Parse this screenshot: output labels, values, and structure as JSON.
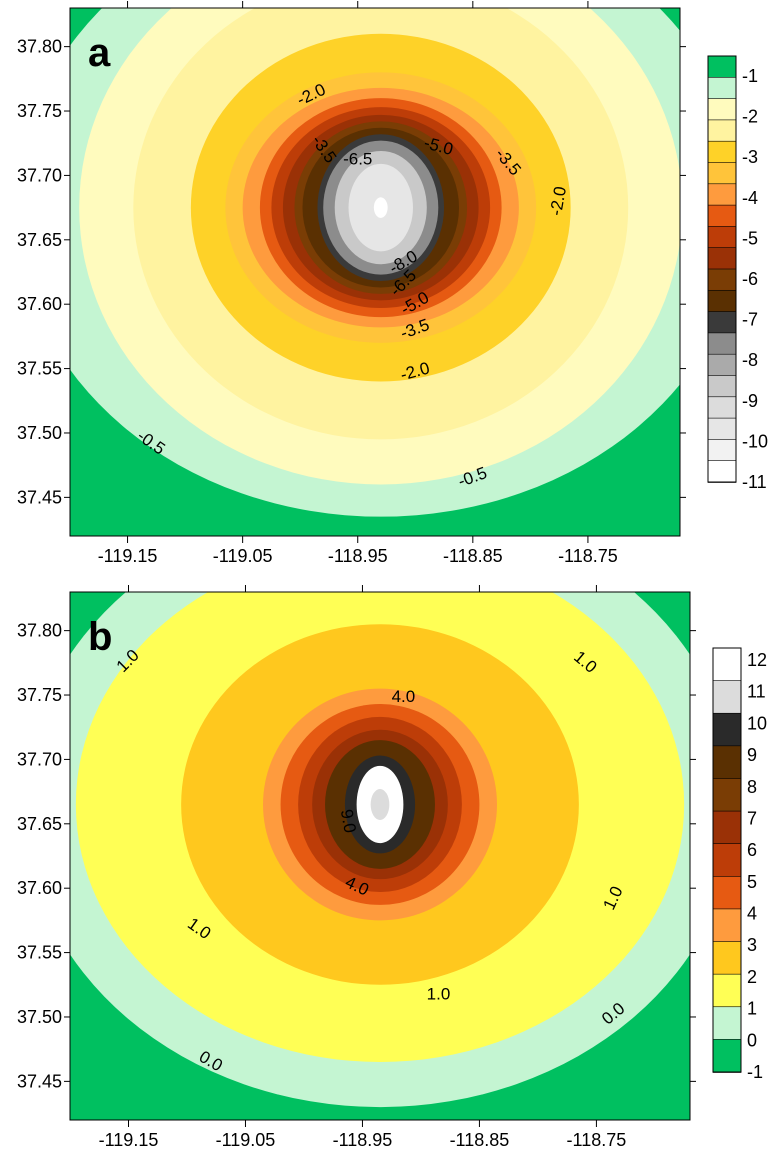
{
  "chart_data": [
    {
      "type": "contour",
      "panel_label": "a",
      "xlabel": "",
      "ylabel": "",
      "xlim": [
        -119.2,
        -118.67
      ],
      "ylim": [
        37.42,
        37.83
      ],
      "x_ticks": [
        -119.15,
        -119.05,
        -118.95,
        -118.85,
        -118.75
      ],
      "x_tick_labels": [
        "-119.15",
        "-119.05",
        "-118.95",
        "-118.85",
        "-118.75"
      ],
      "y_ticks": [
        37.45,
        37.5,
        37.55,
        37.6,
        37.65,
        37.7,
        37.75,
        37.8
      ],
      "y_tick_labels": [
        "37.45",
        "37.50",
        "37.55",
        "37.60",
        "37.65",
        "37.70",
        "37.75",
        "37.80"
      ],
      "center": {
        "x": -118.93,
        "y": 37.675
      },
      "outer_level": -0.5,
      "levels": [
        {
          "value": -0.5,
          "rx": 0.317,
          "ry": 0.24,
          "color": "#c4f5d2"
        },
        {
          "value": -1.0,
          "rx": 0.262,
          "ry": 0.215,
          "color": "#fffbbe"
        },
        {
          "value": -1.5,
          "rx": 0.215,
          "ry": 0.18,
          "color": "#fff3a0"
        },
        {
          "value": -2.0,
          "rx": 0.165,
          "ry": 0.135,
          "color": "#fed228"
        },
        {
          "value": -3.0,
          "rx": 0.135,
          "ry": 0.105,
          "color": "#ffc43a"
        },
        {
          "value": -3.5,
          "rx": 0.12,
          "ry": 0.093,
          "color": "#fe9b3e"
        },
        {
          "value": -4.0,
          "rx": 0.105,
          "ry": 0.085,
          "color": "#e65a12"
        },
        {
          "value": -5.0,
          "rx": 0.095,
          "ry": 0.078,
          "color": "#bd3d08"
        },
        {
          "value": -5.5,
          "rx": 0.085,
          "ry": 0.072,
          "color": "#9a3106"
        },
        {
          "value": -6.0,
          "rx": 0.075,
          "ry": 0.067,
          "color": "#7a3d05"
        },
        {
          "value": -6.5,
          "rx": 0.068,
          "ry": 0.062,
          "color": "#5a3002"
        },
        {
          "value": -7.0,
          "rx": 0.055,
          "ry": 0.057,
          "color": "#3a3a3a"
        },
        {
          "value": -8.0,
          "rx": 0.05,
          "ry": 0.052,
          "color": "#8c8c8c"
        },
        {
          "value": -9.0,
          "rx": 0.04,
          "ry": 0.044,
          "color": "#c9c9c9"
        },
        {
          "value": -10.0,
          "rx": 0.028,
          "ry": 0.034,
          "color": "#e6e6e6"
        },
        {
          "value": -11.0,
          "rx": 0.006,
          "ry": 0.008,
          "color": "#ffffff"
        }
      ],
      "corner_color": "#00c060",
      "contour_labels": [
        {
          "text": "-2.0",
          "x": -118.99,
          "y": 37.762,
          "angle": -25
        },
        {
          "text": "-3.5",
          "x": -118.98,
          "y": 37.72,
          "angle": 55
        },
        {
          "text": "-6.5",
          "x": -118.95,
          "y": 37.712,
          "angle": 0
        },
        {
          "text": "-5.0",
          "x": -118.88,
          "y": 37.722,
          "angle": 15
        },
        {
          "text": "-3.5",
          "x": -118.82,
          "y": 37.71,
          "angle": 50
        },
        {
          "text": "-2.0",
          "x": -118.775,
          "y": 37.68,
          "angle": -80
        },
        {
          "text": "-8.0",
          "x": -118.91,
          "y": 37.632,
          "angle": -30
        },
        {
          "text": "-6.5",
          "x": -118.91,
          "y": 37.616,
          "angle": -45
        },
        {
          "text": "-5.0",
          "x": -118.9,
          "y": 37.6,
          "angle": -30
        },
        {
          "text": "-3.5",
          "x": -118.9,
          "y": 37.58,
          "angle": -20
        },
        {
          "text": "-2.0",
          "x": -118.9,
          "y": 37.547,
          "angle": -15
        },
        {
          "text": "-0.5",
          "x": -119.13,
          "y": 37.492,
          "angle": 35
        },
        {
          "text": "-0.5",
          "x": -118.85,
          "y": 37.465,
          "angle": -20
        }
      ],
      "colorbar": {
        "colors_top_to_bottom": [
          "#00c060",
          "#c4f5d2",
          "#fffbbe",
          "#fff3a0",
          "#fed228",
          "#ffc43a",
          "#fe9b3e",
          "#e65a12",
          "#bd3d08",
          "#9a3106",
          "#7a3d05",
          "#5a3002",
          "#3a3a3a",
          "#8c8c8c",
          "#aaaaaa",
          "#c9c9c9",
          "#dcdcdc",
          "#e6e6e6",
          "#f2f2f2",
          "#ffffff"
        ],
        "labels": [
          "-1",
          "-2",
          "-3",
          "-4",
          "-5",
          "-6",
          "-7",
          "-8",
          "-9",
          "-10",
          "-11"
        ]
      }
    },
    {
      "type": "contour",
      "panel_label": "b",
      "xlabel": "",
      "ylabel": "",
      "xlim": [
        -119.2,
        -118.67
      ],
      "ylim": [
        37.42,
        37.83
      ],
      "x_ticks": [
        -119.15,
        -119.05,
        -118.95,
        -118.85,
        -118.75
      ],
      "x_tick_labels": [
        "-119.15",
        "-119.05",
        "-118.95",
        "-118.85",
        "-118.75"
      ],
      "y_ticks": [
        37.45,
        37.5,
        37.55,
        37.6,
        37.65,
        37.7,
        37.75,
        37.8
      ],
      "y_tick_labels": [
        "37.45",
        "37.50",
        "37.55",
        "37.60",
        "37.65",
        "37.70",
        "37.75",
        "37.80"
      ],
      "center": {
        "x": -118.935,
        "y": 37.665
      },
      "outer_level": 0.0,
      "levels": [
        {
          "value": 0.0,
          "rx": 0.305,
          "ry": 0.235,
          "color": "#c4f5d2"
        },
        {
          "value": 1.0,
          "rx": 0.26,
          "ry": 0.2,
          "color": "#ffff55"
        },
        {
          "value": 2.0,
          "rx": 0.17,
          "ry": 0.14,
          "color": "#ffc81e"
        },
        {
          "value": 3.0,
          "rx": 0.1,
          "ry": 0.09,
          "color": "#fe9b3e"
        },
        {
          "value": 4.0,
          "rx": 0.085,
          "ry": 0.078,
          "color": "#e65a12"
        },
        {
          "value": 5.0,
          "rx": 0.07,
          "ry": 0.068,
          "color": "#bd3d08"
        },
        {
          "value": 7.0,
          "rx": 0.058,
          "ry": 0.058,
          "color": "#9a3106"
        },
        {
          "value": 8.0,
          "rx": 0.047,
          "ry": 0.05,
          "color": "#5a3002"
        },
        {
          "value": 10.0,
          "rx": 0.03,
          "ry": 0.038,
          "color": "#2a2a2a"
        },
        {
          "value": 11.0,
          "rx": 0.02,
          "ry": 0.03,
          "color": "#ffffff"
        },
        {
          "value": 12.0,
          "rx": 0.008,
          "ry": 0.012,
          "color": "#dcdcdc"
        }
      ],
      "corner_color": "#00c060",
      "contour_labels": [
        {
          "text": "1.0",
          "x": -119.15,
          "y": 37.776,
          "angle": -45
        },
        {
          "text": "4.0",
          "x": -118.915,
          "y": 37.748,
          "angle": 0
        },
        {
          "text": "1.0",
          "x": -118.76,
          "y": 37.775,
          "angle": 40
        },
        {
          "text": "9.0",
          "x": -118.963,
          "y": 37.652,
          "angle": 80
        },
        {
          "text": "4.0",
          "x": -118.955,
          "y": 37.601,
          "angle": 25
        },
        {
          "text": "1.0",
          "x": -118.735,
          "y": 37.592,
          "angle": -65
        },
        {
          "text": "1.0",
          "x": -119.09,
          "y": 37.568,
          "angle": 35
        },
        {
          "text": "1.0",
          "x": -118.885,
          "y": 37.517,
          "angle": 0
        },
        {
          "text": "0.0",
          "x": -118.735,
          "y": 37.502,
          "angle": -40
        },
        {
          "text": "0.0",
          "x": -119.08,
          "y": 37.465,
          "angle": 30
        }
      ],
      "colorbar": {
        "colors_top_to_bottom": [
          "#ffffff",
          "#dcdcdc",
          "#2a2a2a",
          "#5a3002",
          "#7a3d05",
          "#9a3106",
          "#bd3d08",
          "#e65a12",
          "#fe9b3e",
          "#ffc81e",
          "#ffff55",
          "#c4f5d2",
          "#00c060"
        ],
        "labels": [
          "12",
          "11",
          "10",
          "9",
          "8",
          "7",
          "6",
          "5",
          "4",
          "3",
          "2",
          "1",
          "0",
          "-1"
        ]
      }
    }
  ]
}
